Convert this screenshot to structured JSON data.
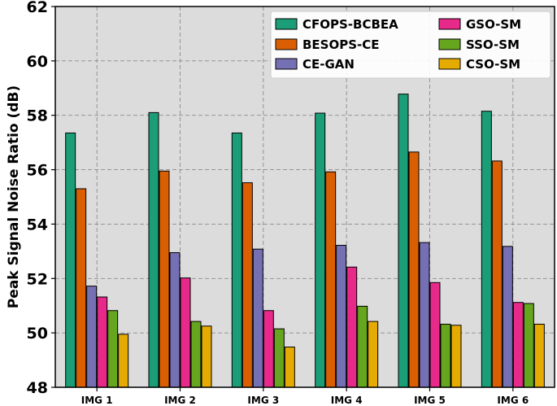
{
  "chart_data": {
    "type": "bar",
    "title": "",
    "xlabel": "",
    "ylabel": "Peak Signal Noise Ratio (dB)",
    "ylim": [
      48,
      62
    ],
    "yticks": [
      "48",
      "50",
      "52",
      "54",
      "56",
      "58",
      "60",
      "62"
    ],
    "grid": true,
    "legend_position": "top-right",
    "categories": [
      "IMG 1",
      "IMG 2",
      "IMG 3",
      "IMG 4",
      "IMG 5",
      "IMG 6"
    ],
    "series": [
      {
        "name": "CFOPS-BCBEA",
        "color": "#1b9e77",
        "values": [
          57.35,
          58.1,
          57.35,
          58.08,
          58.78,
          58.15
        ]
      },
      {
        "name": "BESOPS-CE",
        "color": "#d95f02",
        "values": [
          55.3,
          55.95,
          55.52,
          55.92,
          56.65,
          56.32
        ]
      },
      {
        "name": "CE-GAN",
        "color": "#7570b3",
        "values": [
          51.72,
          52.95,
          53.08,
          53.22,
          53.32,
          53.18
        ]
      },
      {
        "name": "GSO-SM",
        "color": "#e7298a",
        "values": [
          51.32,
          52.02,
          50.82,
          52.42,
          51.85,
          51.12
        ]
      },
      {
        "name": "SSO-SM",
        "color": "#66a61e",
        "values": [
          50.82,
          50.42,
          50.15,
          50.98,
          50.32,
          51.08
        ]
      },
      {
        "name": "CSO-SM",
        "color": "#e6ab02",
        "values": [
          49.95,
          50.25,
          49.48,
          50.42,
          50.28,
          50.32
        ]
      }
    ]
  }
}
